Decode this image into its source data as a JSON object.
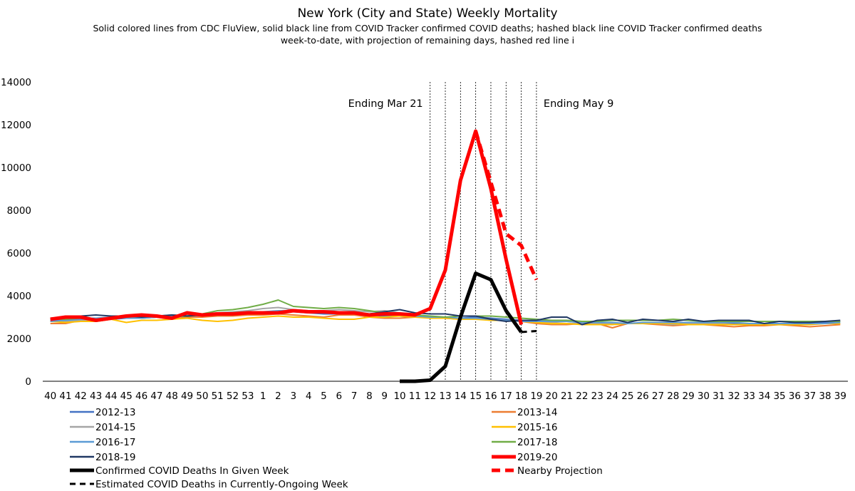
{
  "chart_data": {
    "type": "line",
    "title": "New York (City and State) Weekly Mortality",
    "subtitle_lines": [
      "Solid colored lines from CDC FluView, solid black line from COVID Tracker confirmed COVID deaths; hashed black line COVID Tracker confirmed deaths",
      "week-to-date, with projection of remaining days, hashed red line i"
    ],
    "ylim": [
      0,
      14000
    ],
    "yticks": [
      0,
      2000,
      4000,
      6000,
      8000,
      10000,
      12000,
      14000
    ],
    "ytick_labels": [
      "0",
      "2000",
      "4000",
      "6000",
      "8000",
      "10000",
      "12000",
      "14000"
    ],
    "categories": [
      "40",
      "41",
      "42",
      "43",
      "44",
      "45",
      "46",
      "47",
      "48",
      "49",
      "50",
      "51",
      "52",
      "53",
      "1",
      "2",
      "3",
      "4",
      "5",
      "6",
      "7",
      "8",
      "9",
      "10",
      "11",
      "12",
      "13",
      "14",
      "15",
      "16",
      "17",
      "18",
      "19",
      "20",
      "21",
      "22",
      "23",
      "24",
      "25",
      "26",
      "27",
      "28",
      "29",
      "30",
      "31",
      "32",
      "33",
      "34",
      "35",
      "36",
      "37",
      "38",
      "39"
    ],
    "vlines_at": [
      "12",
      "13",
      "14",
      "15",
      "16",
      "17",
      "18",
      "19"
    ],
    "annotations": [
      {
        "text": "Ending Mar 21",
        "anchor_week": "12",
        "side": "left"
      },
      {
        "text": "Ending May 9",
        "anchor_week": "19",
        "side": "right"
      }
    ],
    "series": [
      {
        "name": "2012-13",
        "color": "#4472c4",
        "style": "solid",
        "values": [
          2850,
          2900,
          2950,
          2950,
          2900,
          2950,
          2950,
          3000,
          3050,
          3100,
          3050,
          3100,
          3150,
          3150,
          3200,
          3250,
          3250,
          3200,
          3150,
          3150,
          3100,
          3100,
          3050,
          3050,
          3000,
          3000,
          2950,
          2950,
          3000,
          2950,
          2900,
          2850,
          2850,
          2800,
          2800,
          2750,
          2750,
          2700,
          2700,
          2700,
          2700,
          2700,
          2700,
          2700,
          2700,
          2700,
          2700,
          2700,
          2700,
          2700,
          2700,
          2750,
          2800
        ]
      },
      {
        "name": "2013-14",
        "color": "#ed7d31",
        "style": "solid",
        "values": [
          2700,
          2700,
          2850,
          2800,
          2900,
          3000,
          3000,
          3000,
          2900,
          3000,
          3000,
          3050,
          3050,
          3100,
          3100,
          3150,
          3100,
          3050,
          3000,
          3100,
          3100,
          3000,
          2950,
          2950,
          3000,
          3000,
          2950,
          2900,
          2950,
          2900,
          2850,
          2800,
          2700,
          2650,
          2650,
          2700,
          2700,
          2500,
          2700,
          2700,
          2650,
          2600,
          2650,
          2650,
          2600,
          2550,
          2600,
          2600,
          2650,
          2600,
          2550,
          2600,
          2650
        ]
      },
      {
        "name": "2014-15",
        "color": "#a5a5a5",
        "style": "solid",
        "values": [
          2800,
          2800,
          2850,
          2900,
          2950,
          3000,
          3050,
          3050,
          3100,
          3100,
          3100,
          3200,
          3250,
          3300,
          3400,
          3450,
          3350,
          3300,
          3300,
          3350,
          3300,
          3250,
          3300,
          3200,
          3050,
          3000,
          2950,
          2950,
          2950,
          2900,
          2850,
          2800,
          2800,
          2750,
          2700,
          2700,
          2700,
          2700,
          2700,
          2700,
          2700,
          2650,
          2700,
          2700,
          2700,
          2650,
          2650,
          2650,
          2700,
          2700,
          2700,
          2700,
          2700
        ]
      },
      {
        "name": "2015-16",
        "color": "#ffc000",
        "style": "solid",
        "values": [
          2800,
          2750,
          2800,
          2800,
          2900,
          2750,
          2850,
          2850,
          2900,
          2950,
          2850,
          2800,
          2850,
          2950,
          3000,
          3050,
          3000,
          3000,
          2950,
          2900,
          2900,
          3000,
          3000,
          3050,
          3000,
          2950,
          2950,
          2900,
          2900,
          2850,
          2850,
          2800,
          2750,
          2700,
          2700,
          2650,
          2650,
          2650,
          2700,
          2700,
          2700,
          2700,
          2650,
          2650,
          2650,
          2650,
          2650,
          2650,
          2650,
          2650,
          2650,
          2700,
          2700
        ]
      },
      {
        "name": "2016-17",
        "color": "#5b9bd5",
        "style": "solid",
        "values": [
          2800,
          2850,
          2900,
          2950,
          3000,
          2950,
          2950,
          3000,
          3050,
          3050,
          3100,
          3150,
          3200,
          3200,
          3250,
          3300,
          3300,
          3250,
          3250,
          3200,
          3200,
          3150,
          3100,
          3150,
          3050,
          3000,
          3000,
          2950,
          2950,
          2900,
          2850,
          2800,
          2800,
          2800,
          2800,
          2750,
          2750,
          2750,
          2700,
          2750,
          2750,
          2750,
          2750,
          2750,
          2750,
          2750,
          2700,
          2700,
          2700,
          2700,
          2700,
          2700,
          2750
        ]
      },
      {
        "name": "2017-18",
        "color": "#70ad47",
        "style": "solid",
        "values": [
          2900,
          2900,
          2950,
          2900,
          2950,
          3000,
          3050,
          3000,
          3000,
          3050,
          3150,
          3300,
          3350,
          3450,
          3600,
          3800,
          3500,
          3450,
          3400,
          3450,
          3400,
          3300,
          3200,
          3150,
          3100,
          3050,
          3000,
          3050,
          3050,
          3050,
          3000,
          2950,
          2900,
          2850,
          2850,
          2800,
          2800,
          2850,
          2850,
          2850,
          2850,
          2900,
          2850,
          2800,
          2800,
          2800,
          2800,
          2800,
          2800,
          2800,
          2800,
          2800,
          2800
        ]
      },
      {
        "name": "2018-19",
        "color": "#203864",
        "style": "solid",
        "values": [
          2950,
          3000,
          3050,
          3100,
          3050,
          3050,
          3000,
          3050,
          3100,
          3050,
          3100,
          3150,
          3200,
          3200,
          3200,
          3250,
          3300,
          3250,
          3200,
          3200,
          3150,
          3150,
          3250,
          3350,
          3200,
          3150,
          3150,
          3050,
          3050,
          2900,
          2800,
          2850,
          2850,
          3000,
          3000,
          2650,
          2850,
          2900,
          2750,
          2900,
          2850,
          2800,
          2900,
          2800,
          2850,
          2850,
          2850,
          2700,
          2800,
          2750,
          2750,
          2800,
          2850
        ]
      },
      {
        "name": "2019-20",
        "color": "#ff0000",
        "style": "solid",
        "width": 5,
        "values": [
          2900,
          3000,
          3000,
          2850,
          2950,
          3050,
          3100,
          3050,
          2950,
          3200,
          3100,
          3150,
          3150,
          3200,
          3200,
          3200,
          3300,
          3250,
          3250,
          3200,
          3200,
          3100,
          3150,
          3150,
          3100,
          3400,
          5200,
          9400,
          11700,
          9000,
          5700,
          2650,
          null,
          null,
          null,
          null,
          null,
          null,
          null,
          null,
          null,
          null,
          null,
          null,
          null,
          null,
          null,
          null,
          null,
          null,
          null,
          null,
          null
        ]
      },
      {
        "name": "Confirmed COVID Deaths In Given Week",
        "color": "#000000",
        "style": "solid",
        "width": 5,
        "values": [
          null,
          null,
          null,
          null,
          null,
          null,
          null,
          null,
          null,
          null,
          null,
          null,
          null,
          null,
          null,
          null,
          null,
          null,
          null,
          null,
          null,
          null,
          null,
          0,
          0,
          50,
          700,
          3000,
          5050,
          4750,
          3300,
          2300,
          null,
          null,
          null,
          null,
          null,
          null,
          null,
          null,
          null,
          null,
          null,
          null,
          null,
          null,
          null,
          null,
          null,
          null,
          null,
          null,
          null
        ]
      },
      {
        "name": "Nearby Projection",
        "color": "#ff0000",
        "style": "dashed",
        "width": 5,
        "values": [
          null,
          null,
          null,
          null,
          null,
          null,
          null,
          null,
          null,
          null,
          null,
          null,
          null,
          null,
          null,
          null,
          null,
          null,
          null,
          null,
          null,
          null,
          null,
          null,
          null,
          null,
          null,
          null,
          11700,
          9300,
          6900,
          6350,
          4750,
          null,
          null,
          null,
          null,
          null,
          null,
          null,
          null,
          null,
          null,
          null,
          null,
          null,
          null,
          null,
          null,
          null,
          null,
          null,
          null
        ]
      },
      {
        "name": "Estimated COVID Deaths in Currently-Ongoing Week",
        "color": "#000000",
        "style": "dashed",
        "width": 3,
        "values": [
          null,
          null,
          null,
          null,
          null,
          null,
          null,
          null,
          null,
          null,
          null,
          null,
          null,
          null,
          null,
          null,
          null,
          null,
          null,
          null,
          null,
          null,
          null,
          null,
          null,
          null,
          null,
          null,
          null,
          null,
          null,
          2300,
          2350,
          null,
          null,
          null,
          null,
          null,
          null,
          null,
          null,
          null,
          null,
          null,
          null,
          null,
          null,
          null,
          null,
          null,
          null,
          null,
          null
        ]
      }
    ]
  }
}
